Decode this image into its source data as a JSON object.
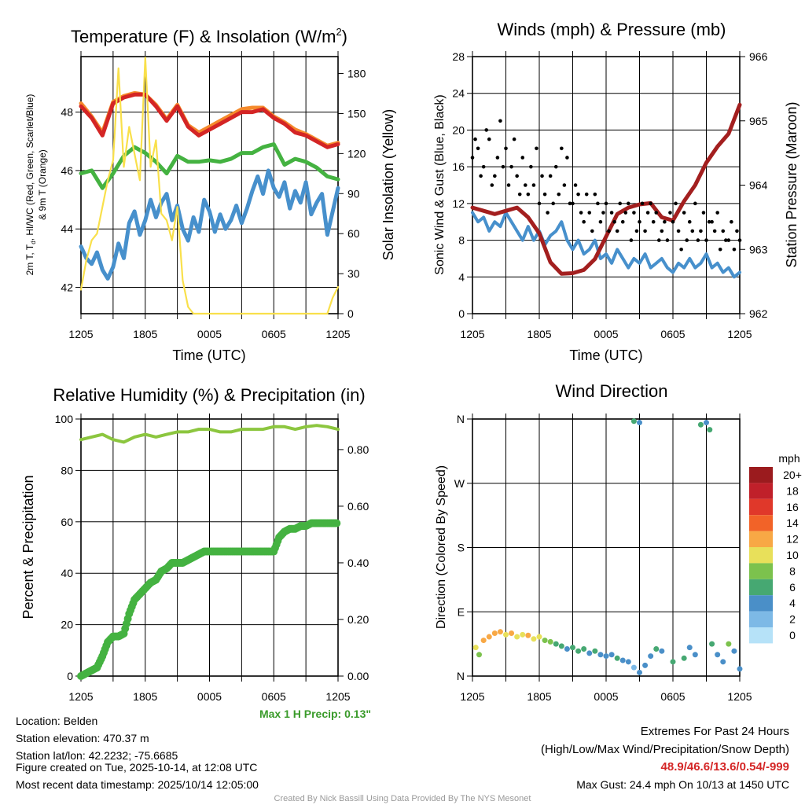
{
  "time_ticks": [
    "1205",
    "1805",
    "0005",
    "0605",
    "1205"
  ],
  "chart_data": [
    {
      "type": "line",
      "title": "Temperature (F) & Insolation (W/m",
      "title_sup": "2",
      "title_end": ")",
      "xlabel": "Time (UTC)",
      "ylabel_line1": "2m T, T",
      "ylabel_sub": "d",
      "ylabel_line1_end": ", HI/WC (Red, Green, Scarlet/Blue)",
      "ylabel_line2": "& 9m T (Orange)",
      "ylabel_right": "Solar Insolation (Yellow)",
      "ylim": [
        41.1,
        49.9
      ],
      "ylim_right": [
        0,
        192.7
      ],
      "yticks": [
        "42",
        "44",
        "46",
        "48"
      ],
      "yticks_right": [
        "0",
        "30",
        "60",
        "90",
        "120",
        "150",
        "180"
      ],
      "series": [
        {
          "name": "9m T",
          "color": "#f58a2c",
          "values": [
            48.3,
            47.85,
            47.3,
            48.35,
            48.55,
            48.65,
            48.6,
            48.25,
            47.75,
            48.25,
            47.55,
            47.3,
            47.5,
            47.7,
            47.9,
            48.1,
            48.15,
            48.15,
            47.85,
            47.65,
            47.4,
            47.25,
            47.05,
            46.85,
            46.95
          ]
        },
        {
          "name": "2m T",
          "color": "#d42525",
          "values": [
            48.2,
            47.8,
            47.2,
            48.3,
            48.5,
            48.6,
            48.6,
            48.2,
            47.7,
            48.2,
            47.5,
            47.2,
            47.4,
            47.6,
            47.8,
            48.0,
            48.0,
            48.1,
            47.8,
            47.6,
            47.3,
            47.2,
            47.0,
            46.8,
            46.9
          ]
        },
        {
          "name": "Td",
          "color": "#44b241",
          "values": [
            45.9,
            46.0,
            45.4,
            45.9,
            46.5,
            46.8,
            46.6,
            46.3,
            45.9,
            46.5,
            46.3,
            46.3,
            46.35,
            46.3,
            46.4,
            46.6,
            46.6,
            46.8,
            46.9,
            46.2,
            46.4,
            46.3,
            46.1,
            45.8,
            45.7
          ]
        },
        {
          "name": "HI/WC",
          "color": "#4790cc",
          "values": [
            43.4,
            43.0,
            42.8,
            43.2,
            42.6,
            42.3,
            42.7,
            43.5,
            43.0,
            44.2,
            44.6,
            43.8,
            44.3,
            45.0,
            44.4,
            44.9,
            45.2,
            44.3,
            44.8,
            44.0,
            43.6,
            44.4,
            43.9,
            45.0,
            44.6,
            43.9,
            44.5,
            44.0,
            44.3,
            44.8,
            44.2,
            44.7,
            45.3,
            45.8,
            45.2,
            46.0,
            45.4,
            45.1,
            45.6,
            44.7,
            45.3,
            44.9,
            45.6,
            44.5,
            44.9,
            45.2,
            43.8,
            44.6,
            45.4
          ]
        },
        {
          "name": "Solar",
          "color": "#f9e04b",
          "axis": "right",
          "values": [
            18,
            40,
            55,
            60,
            80,
            100,
            115,
            184,
            110,
            140,
            120,
            100,
            192,
            110,
            130,
            75,
            70,
            55,
            80,
            25,
            5,
            0,
            0,
            0,
            0,
            0,
            0,
            0,
            0,
            0,
            0,
            0,
            0,
            0,
            0,
            0,
            0,
            0,
            0,
            0,
            0,
            0,
            0,
            0,
            0,
            0,
            0,
            12,
            20
          ]
        }
      ]
    },
    {
      "type": "line",
      "title": "Winds (mph) & Pressure (mb)",
      "xlabel": "Time (UTC)",
      "ylabel": "Sonic Wind & Gust (Blue, Black)",
      "ylabel_right": "Station Pressure (Maroon)",
      "ylim": [
        0,
        28
      ],
      "ylim_right": [
        962,
        966
      ],
      "yticks": [
        "0",
        "4",
        "8",
        "12",
        "16",
        "20",
        "24",
        "28"
      ],
      "yticks_right": [
        "962",
        "963",
        "964",
        "965",
        "966"
      ],
      "sonic_wind": {
        "color": "#4790cc",
        "values": [
          11,
          10,
          10.5,
          9,
          10,
          9.5,
          11,
          10,
          9,
          8,
          9.5,
          8,
          9,
          7.5,
          8.5,
          9,
          10,
          8,
          7,
          8,
          6.5,
          7,
          8,
          6,
          6.5,
          5.5,
          7,
          6,
          5,
          6,
          5.5,
          6.5,
          5,
          5.5,
          6,
          5,
          4.5,
          5.5,
          5,
          6,
          5,
          5.5,
          6.5,
          5,
          5.5,
          4.5,
          5,
          4,
          4.5
        ]
      },
      "gusts": {
        "color": "#000000",
        "values": [
          [
            17,
            19
          ],
          [
            18,
            15
          ],
          [
            16,
            20
          ],
          [
            19,
            14
          ],
          [
            15,
            17
          ],
          [
            21,
            16
          ],
          [
            18,
            14
          ],
          [
            16,
            19
          ],
          [
            15,
            13
          ],
          [
            17,
            14
          ],
          [
            13,
            16
          ],
          [
            14,
            18
          ],
          [
            12,
            15
          ],
          [
            13,
            11
          ],
          [
            15,
            12
          ],
          [
            16,
            13
          ],
          [
            18,
            14
          ],
          [
            17,
            12
          ],
          [
            12,
            14
          ],
          [
            13,
            11
          ],
          [
            10,
            13
          ],
          [
            11,
            9
          ],
          [
            13,
            12
          ],
          [
            10,
            11
          ],
          [
            12,
            9
          ],
          [
            11,
            10
          ],
          [
            9,
            12
          ],
          [
            10,
            11
          ],
          [
            12,
            8
          ],
          [
            11,
            9
          ],
          [
            10,
            12
          ],
          [
            9,
            11
          ],
          [
            12,
            10
          ],
          [
            11,
            8
          ],
          [
            9,
            10
          ],
          [
            8,
            11
          ],
          [
            10,
            12
          ],
          [
            9,
            7
          ],
          [
            11,
            8
          ],
          [
            10,
            9
          ],
          [
            12,
            8
          ],
          [
            9,
            11
          ],
          [
            8,
            10
          ],
          [
            10,
            9
          ],
          [
            11,
            7
          ],
          [
            9,
            8
          ],
          [
            8,
            10
          ],
          [
            7,
            9
          ],
          [
            8,
            6
          ]
        ]
      },
      "pressure": {
        "color": "#a31f1f",
        "values": [
          963.65,
          963.6,
          963.55,
          963.6,
          963.65,
          963.5,
          963.25,
          962.8,
          962.62,
          962.63,
          962.68,
          962.85,
          963.2,
          963.55,
          963.65,
          963.7,
          963.72,
          963.5,
          963.45,
          963.75,
          964.0,
          964.35,
          964.6,
          964.8,
          965.25
        ]
      }
    },
    {
      "type": "scatter",
      "title": "Relative Humidity (%) & Precipitation (in)",
      "ylabel": "Percent & Precipitation",
      "ylim": [
        0,
        100
      ],
      "ylim_right": [
        0,
        0.908
      ],
      "yticks": [
        "0",
        "20",
        "40",
        "60",
        "80",
        "100"
      ],
      "yticks_right": [
        "0.00",
        "0.20",
        "0.40",
        "0.60",
        "0.80"
      ],
      "rh": {
        "color": "#8cc63f",
        "values": [
          92,
          93,
          94,
          92,
          91,
          93,
          94,
          93,
          94,
          95,
          95,
          96,
          96,
          95,
          95,
          96,
          96,
          96,
          97,
          97,
          96,
          97,
          97.5,
          97,
          96
        ]
      },
      "precip": {
        "color": "#44b241",
        "values": [
          0,
          0.01,
          0.02,
          0.03,
          0.07,
          0.12,
          0.14,
          0.14,
          0.15,
          0.22,
          0.27,
          0.29,
          0.31,
          0.33,
          0.34,
          0.37,
          0.38,
          0.4,
          0.4,
          0.4,
          0.41,
          0.42,
          0.43,
          0.44,
          0.44,
          0.44,
          0.44,
          0.44,
          0.44,
          0.44,
          0.44,
          0.44,
          0.44,
          0.44,
          0.44,
          0.44,
          0.44,
          0.49,
          0.51,
          0.52,
          0.52,
          0.53,
          0.53,
          0.54,
          0.54,
          0.54,
          0.54,
          0.54,
          0.54
        ]
      },
      "max_precip_label": "Max 1 H Precip: 0.13\""
    },
    {
      "type": "scatter",
      "title": "Wind Direction",
      "ylabel": "Direction (Colored By Speed)",
      "yticks": [
        "N",
        "E",
        "S",
        "W",
        "N"
      ],
      "points_hour_deg_mph": [
        [
          0.3,
          40,
          10
        ],
        [
          0.6,
          30,
          8
        ],
        [
          1,
          50,
          12
        ],
        [
          1.5,
          55,
          12
        ],
        [
          2,
          60,
          12
        ],
        [
          2.5,
          62,
          13
        ],
        [
          3,
          58,
          11
        ],
        [
          3.5,
          60,
          12
        ],
        [
          4,
          55,
          10
        ],
        [
          4.5,
          58,
          11
        ],
        [
          5,
          57,
          12
        ],
        [
          5.5,
          52,
          10
        ],
        [
          6,
          55,
          10
        ],
        [
          6.5,
          50,
          9
        ],
        [
          7,
          48,
          8
        ],
        [
          7.5,
          45,
          7
        ],
        [
          8,
          42,
          6
        ],
        [
          8.5,
          38,
          5
        ],
        [
          9,
          40,
          6
        ],
        [
          9.5,
          35,
          6
        ],
        [
          10,
          38,
          7
        ],
        [
          10.5,
          32,
          5
        ],
        [
          11,
          35,
          6
        ],
        [
          11.5,
          30,
          5
        ],
        [
          12,
          28,
          4
        ],
        [
          12.5,
          30,
          5
        ],
        [
          13,
          25,
          6
        ],
        [
          13.5,
          22,
          5
        ],
        [
          14,
          20,
          4
        ],
        [
          14.5,
          12,
          3
        ],
        [
          15,
          5,
          4
        ],
        [
          15.5,
          15,
          4
        ],
        [
          14.5,
          357,
          6
        ],
        [
          15,
          355,
          5
        ],
        [
          16,
          28,
          4
        ],
        [
          16.5,
          38,
          6
        ],
        [
          17,
          35,
          5
        ],
        [
          18,
          20,
          7
        ],
        [
          19,
          25,
          6
        ],
        [
          19.5,
          40,
          4
        ],
        [
          20,
          30,
          4
        ],
        [
          20.5,
          352,
          6
        ],
        [
          21,
          355,
          5
        ],
        [
          21.3,
          345,
          6
        ],
        [
          21.5,
          45,
          7
        ],
        [
          22,
          30,
          4
        ],
        [
          22.5,
          20,
          5
        ],
        [
          23,
          45,
          8
        ],
        [
          23.5,
          35,
          4
        ],
        [
          24,
          10,
          5
        ]
      ],
      "legend_title": "mph",
      "legend": [
        {
          "label": "20+",
          "color": "#9b1b1e"
        },
        {
          "label": "18",
          "color": "#c0202a"
        },
        {
          "label": "16",
          "color": "#e0382a"
        },
        {
          "label": "14",
          "color": "#f26328"
        },
        {
          "label": "12",
          "color": "#f8a845"
        },
        {
          "label": "10",
          "color": "#e8e05a"
        },
        {
          "label": "8",
          "color": "#7cc24d"
        },
        {
          "label": "6",
          "color": "#46a872"
        },
        {
          "label": "4",
          "color": "#4a8fc8"
        },
        {
          "label": "2",
          "color": "#7db9e6"
        },
        {
          "label": "0",
          "color": "#b6e2f8"
        }
      ]
    }
  ],
  "info": {
    "location": "Location: Belden",
    "elevation": "Station elevation: 470.37 m",
    "latlon": "Station lat/lon: 42.2232; -75.6685",
    "created": "Figure created on Tue, 2025-10-14, at 12:08 UTC",
    "recent": "Most recent data timestamp: 2025/10/14 12:05:00"
  },
  "extremes": {
    "title": "Extremes For Past 24 Hours",
    "subtitle": "(High/Low/Max Wind/Precipitation/Snow Depth)",
    "values": "48.9/46.6/13.6/0.54/-999",
    "max_gust": "Max Gust: 24.4 mph On 10/13 at 1450 UTC"
  },
  "credit": "Created By Nick Bassill Using Data Provided By The NYS Mesonet"
}
